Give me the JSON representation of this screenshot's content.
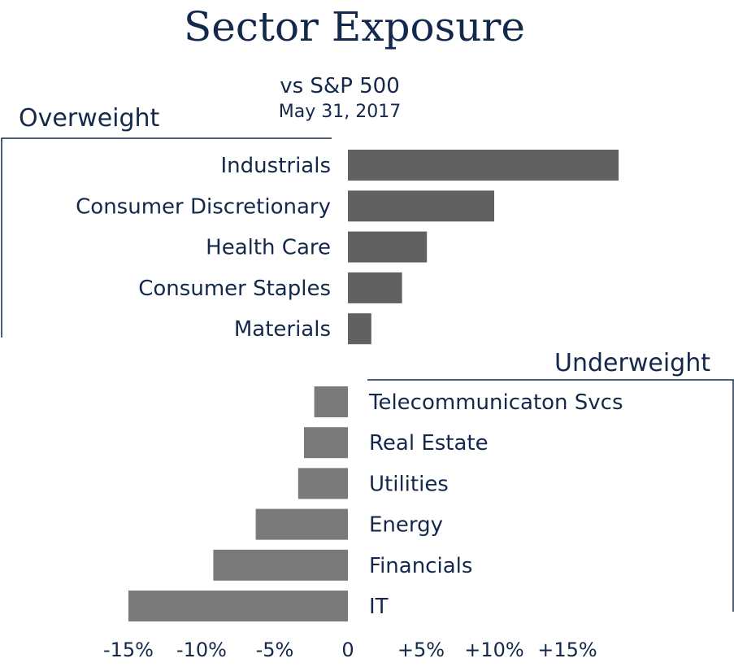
{
  "colors": {
    "overweight_bar": "#616161",
    "underweight_bar": "#7a7a7a",
    "text": "#13284a"
  },
  "chart_data": {
    "type": "bar",
    "orientation": "horizontal",
    "title": "Sector Exposure",
    "subtitle": "vs S&P 500",
    "date": "May 31, 2017",
    "overweight_label": "Overweight",
    "underweight_label": "Underweight",
    "xlim": [
      -15,
      15
    ],
    "ticks": [
      -15,
      -10,
      -5,
      0,
      5,
      10,
      15
    ],
    "tick_labels": [
      "-15%",
      "-10%",
      "-5%",
      "0",
      "+5%",
      "+10%",
      "+15%"
    ],
    "overweight": [
      {
        "label": "Industrials",
        "value": 18.5
      },
      {
        "label": "Consumer Discretionary",
        "value": 10.0
      },
      {
        "label": "Health Care",
        "value": 5.4
      },
      {
        "label": "Consumer Staples",
        "value": 3.7
      },
      {
        "label": "Materials",
        "value": 1.6
      }
    ],
    "underweight": [
      {
        "label": "Telecommunicaton Svcs",
        "value": -2.3
      },
      {
        "label": "Real Estate",
        "value": -3.0
      },
      {
        "label": "Utilities",
        "value": -3.4
      },
      {
        "label": "Energy",
        "value": -6.3
      },
      {
        "label": "Financials",
        "value": -9.2
      },
      {
        "label": "IT",
        "value": -15.0
      }
    ]
  }
}
